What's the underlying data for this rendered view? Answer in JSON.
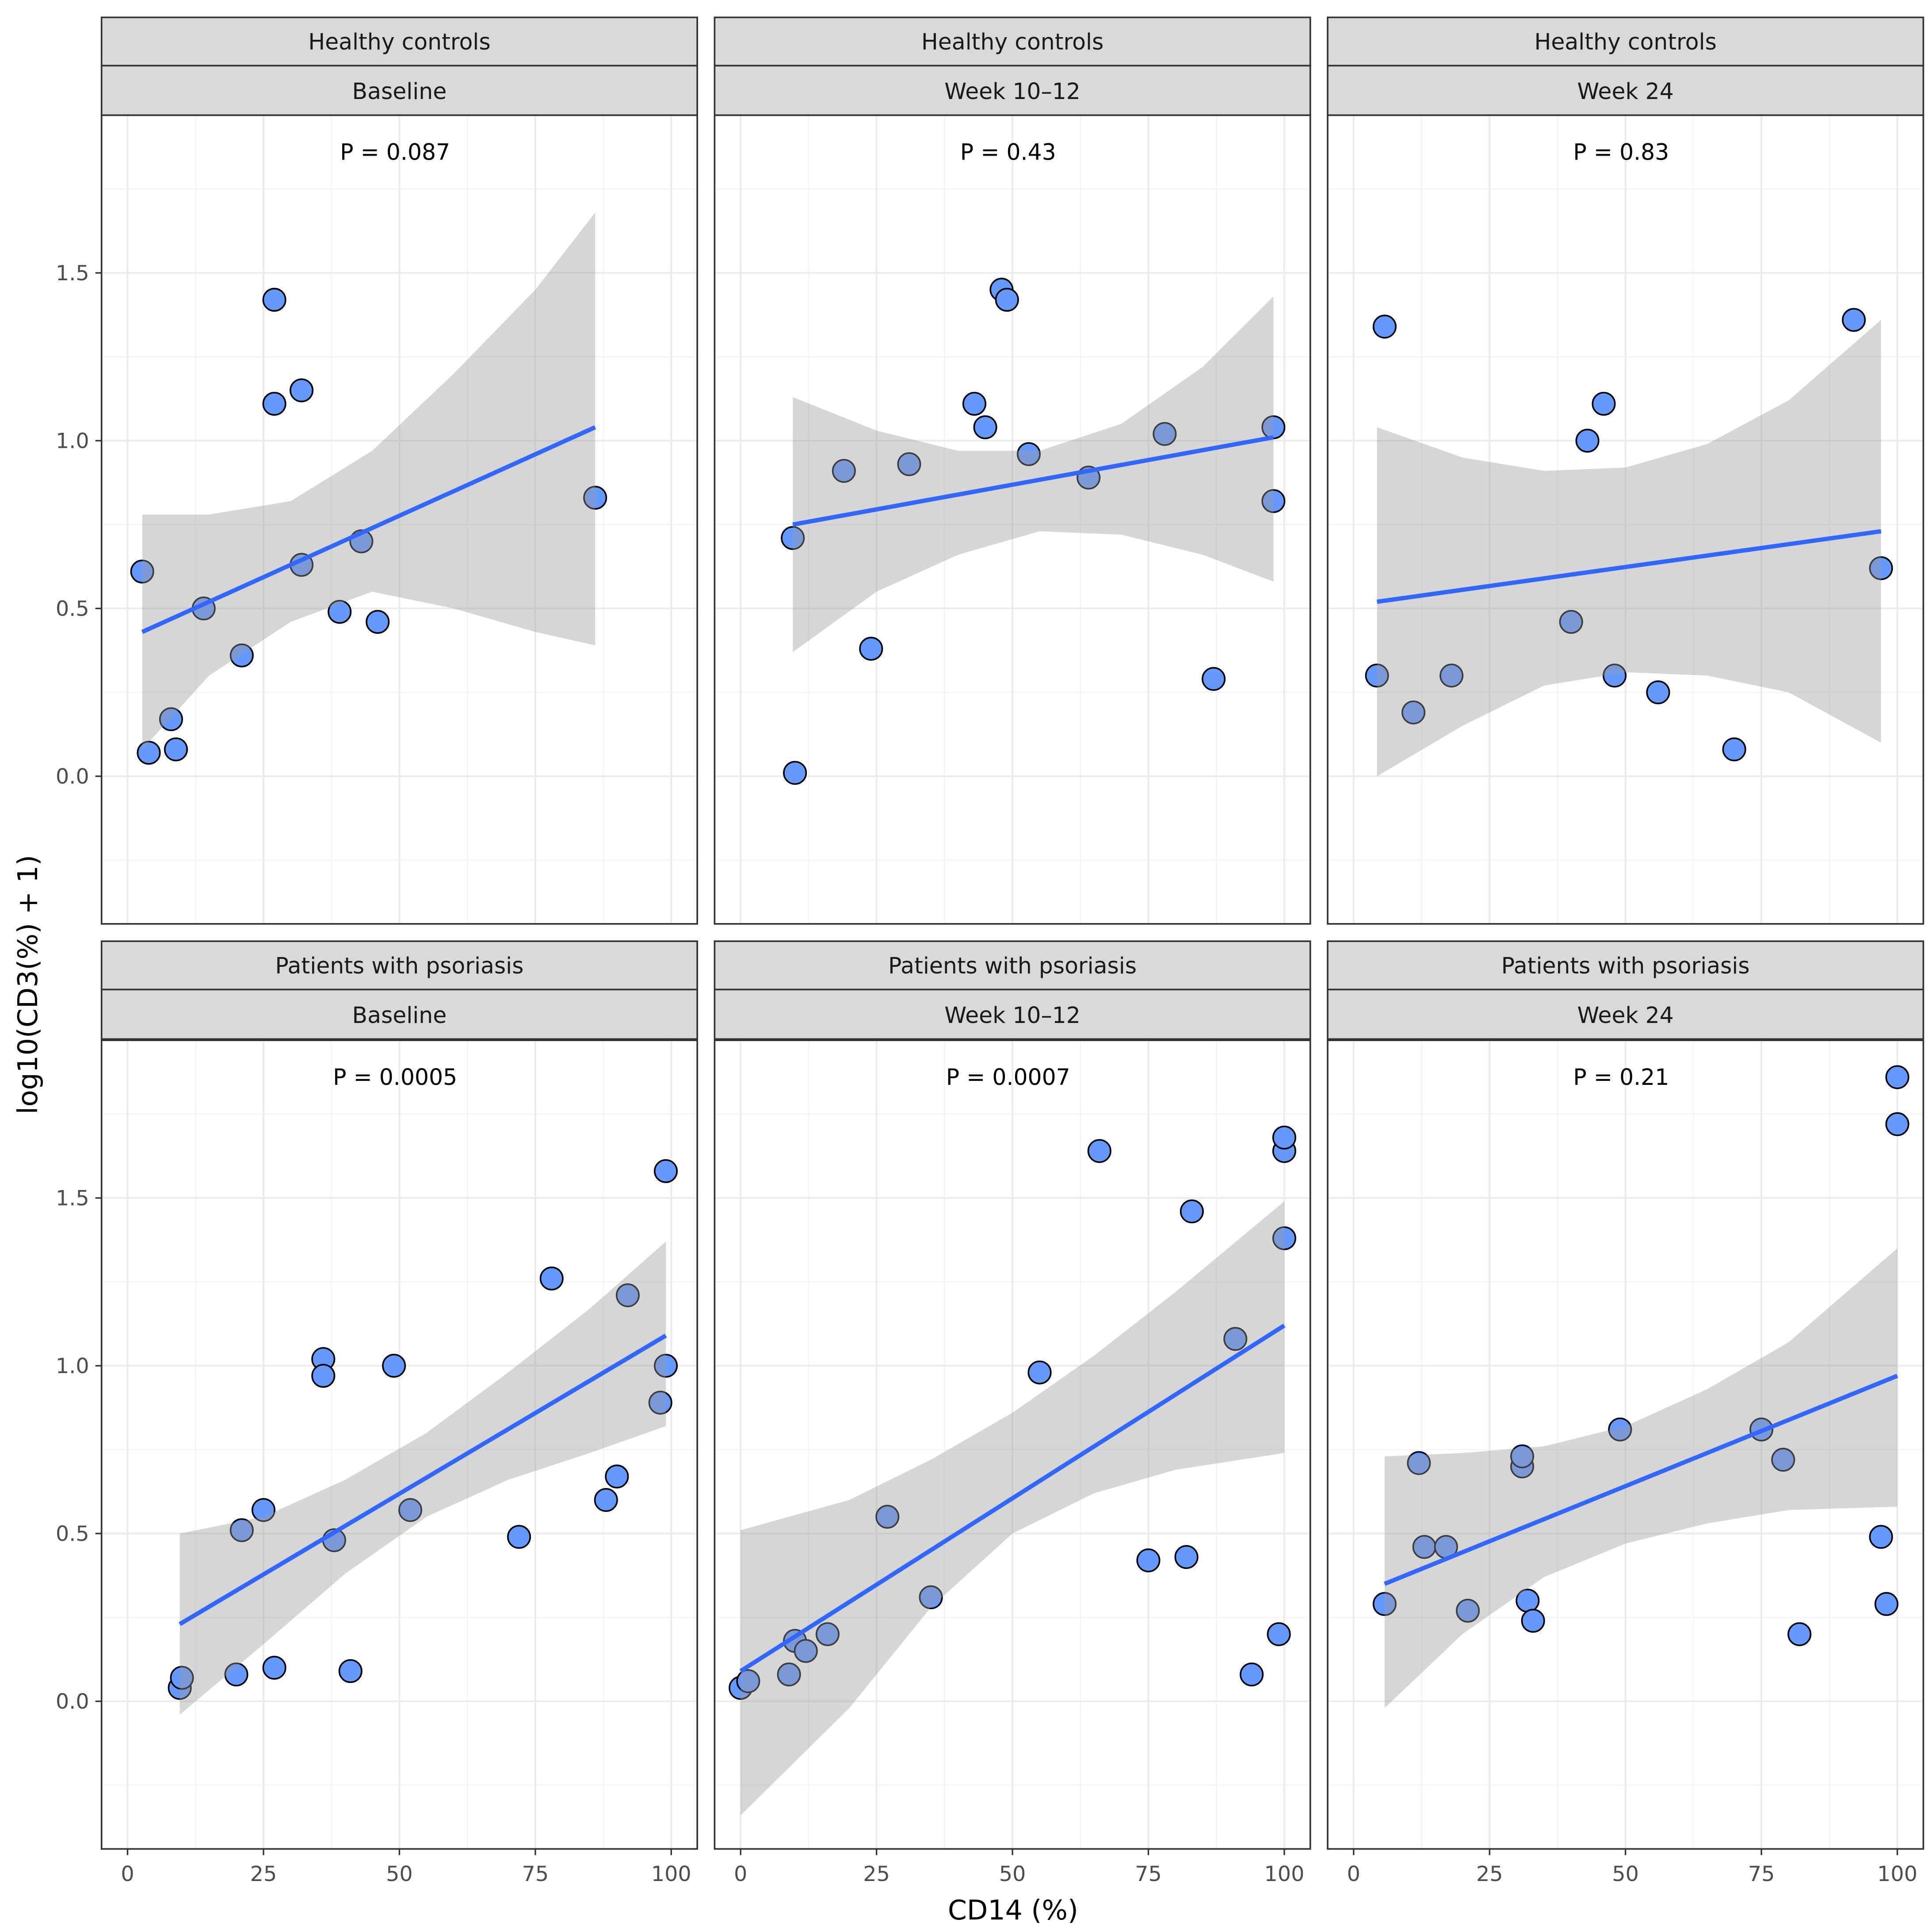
{
  "chart_data": {
    "type": "scatter",
    "xlabel": "CD14 (%)",
    "ylabel": "log10(CD3(%) + 1)",
    "xlim": [
      -5,
      105
    ],
    "ylim": [
      -0.44,
      1.97
    ],
    "xticks": [
      0,
      25,
      50,
      75,
      100
    ],
    "yticks": [
      0.0,
      0.5,
      1.0,
      1.5
    ],
    "xtick_labels": [
      "0",
      "25",
      "50",
      "75",
      "100"
    ],
    "ytick_labels": [
      "0.0",
      "0.5",
      "1.0",
      "1.5"
    ],
    "grid": true,
    "colors": {
      "point_fill": "#6699FF",
      "point_stroke": "#000000",
      "line": "#3366FF",
      "band": "#999999"
    },
    "panels": [
      {
        "group": "Healthy controls",
        "time": "Baseline",
        "p_label": "P = 0.087",
        "points": [
          [
            2.7,
            0.61
          ],
          [
            3.9,
            0.07
          ],
          [
            8.9,
            0.08
          ],
          [
            8,
            0.17
          ],
          [
            14,
            0.5
          ],
          [
            21,
            0.36
          ],
          [
            27,
            1.42
          ],
          [
            27,
            1.11
          ],
          [
            32,
            1.15
          ],
          [
            32,
            0.63
          ],
          [
            39,
            0.49
          ],
          [
            43,
            0.7
          ],
          [
            46,
            0.46
          ],
          [
            86,
            0.83
          ]
        ],
        "fit": [
          [
            2.7,
            0.43
          ],
          [
            86,
            1.04
          ]
        ],
        "band": {
          "x": [
            2.7,
            15,
            30,
            45,
            60,
            75,
            86
          ],
          "upper": [
            0.78,
            0.78,
            0.82,
            0.97,
            1.2,
            1.45,
            1.68
          ],
          "lower": [
            0.08,
            0.3,
            0.46,
            0.55,
            0.5,
            0.43,
            0.39
          ]
        }
      },
      {
        "group": "Healthy controls",
        "time": "Week 10–12",
        "p_label": "P = 0.43",
        "points": [
          [
            9.6,
            0.71
          ],
          [
            10,
            0.01
          ],
          [
            19,
            0.91
          ],
          [
            24,
            0.38
          ],
          [
            31,
            0.93
          ],
          [
            43,
            1.11
          ],
          [
            45,
            1.04
          ],
          [
            48,
            1.45
          ],
          [
            49,
            1.42
          ],
          [
            53,
            0.96
          ],
          [
            64,
            0.89
          ],
          [
            78,
            1.02
          ],
          [
            87,
            0.29
          ],
          [
            98,
            1.04
          ],
          [
            98,
            0.82
          ]
        ],
        "fit": [
          [
            9.6,
            0.75
          ],
          [
            98,
            1.01
          ]
        ],
        "band": {
          "x": [
            9.6,
            25,
            40,
            55,
            70,
            85,
            98
          ],
          "upper": [
            1.13,
            1.03,
            0.97,
            0.97,
            1.05,
            1.22,
            1.43
          ],
          "lower": [
            0.37,
            0.55,
            0.66,
            0.73,
            0.72,
            0.66,
            0.58
          ]
        }
      },
      {
        "group": "Healthy controls",
        "time": "Week 24",
        "p_label": "P = 0.83",
        "points": [
          [
            4.3,
            0.3
          ],
          [
            5.7,
            1.34
          ],
          [
            11,
            0.19
          ],
          [
            18,
            0.3
          ],
          [
            40,
            0.46
          ],
          [
            43,
            1.0
          ],
          [
            46,
            1.11
          ],
          [
            48,
            0.3
          ],
          [
            56,
            0.25
          ],
          [
            70,
            0.08
          ],
          [
            92,
            1.36
          ],
          [
            97,
            0.62
          ]
        ],
        "fit": [
          [
            4.3,
            0.52
          ],
          [
            97,
            0.73
          ]
        ],
        "band": {
          "x": [
            4.3,
            20,
            35,
            50,
            65,
            80,
            97
          ],
          "upper": [
            1.04,
            0.95,
            0.91,
            0.92,
            0.99,
            1.12,
            1.36
          ],
          "lower": [
            0.0,
            0.15,
            0.27,
            0.31,
            0.3,
            0.25,
            0.1
          ]
        }
      },
      {
        "group": "Patients with psoriasis",
        "time": "Baseline",
        "p_label": "P = 0.0005",
        "points": [
          [
            9.6,
            0.04
          ],
          [
            10,
            0.07
          ],
          [
            20,
            0.08
          ],
          [
            21,
            0.51
          ],
          [
            25,
            0.57
          ],
          [
            27,
            0.1
          ],
          [
            36,
            1.02
          ],
          [
            36,
            0.97
          ],
          [
            38,
            0.48
          ],
          [
            41,
            0.09
          ],
          [
            49,
            1.0
          ],
          [
            52,
            0.57
          ],
          [
            72,
            0.49
          ],
          [
            78,
            1.26
          ],
          [
            88,
            0.6
          ],
          [
            90,
            0.67
          ],
          [
            92,
            1.21
          ],
          [
            98,
            0.89
          ],
          [
            99,
            1.0
          ],
          [
            99,
            1.58
          ]
        ],
        "fit": [
          [
            9.6,
            0.23
          ],
          [
            99,
            1.09
          ]
        ],
        "band": {
          "x": [
            9.6,
            25,
            40,
            55,
            70,
            85,
            99
          ],
          "upper": [
            0.5,
            0.55,
            0.66,
            0.8,
            0.98,
            1.17,
            1.37
          ],
          "lower": [
            -0.04,
            0.17,
            0.38,
            0.55,
            0.66,
            0.74,
            0.82
          ]
        }
      },
      {
        "group": "Patients with psoriasis",
        "time": "Week 10–12",
        "p_label": "P = 0.0007",
        "points": [
          [
            0,
            0.04
          ],
          [
            1.4,
            0.06
          ],
          [
            8.9,
            0.08
          ],
          [
            10,
            0.18
          ],
          [
            12,
            0.15
          ],
          [
            16,
            0.2
          ],
          [
            27,
            0.55
          ],
          [
            35,
            0.31
          ],
          [
            55,
            0.98
          ],
          [
            66,
            1.64
          ],
          [
            75,
            0.42
          ],
          [
            82,
            0.43
          ],
          [
            83,
            1.46
          ],
          [
            91,
            1.08
          ],
          [
            94,
            0.08
          ],
          [
            99,
            0.2
          ],
          [
            100,
            1.38
          ],
          [
            100,
            1.64
          ],
          [
            100,
            1.68
          ]
        ],
        "fit": [
          [
            0,
            0.09
          ],
          [
            100,
            1.12
          ]
        ],
        "band": {
          "x": [
            0,
            20,
            35,
            50,
            65,
            80,
            100
          ],
          "upper": [
            0.51,
            0.6,
            0.72,
            0.86,
            1.03,
            1.22,
            1.49
          ],
          "lower": [
            -0.34,
            -0.02,
            0.28,
            0.5,
            0.62,
            0.69,
            0.74
          ]
        }
      },
      {
        "group": "Patients with psoriasis",
        "time": "Week 24",
        "p_label": "P = 0.21",
        "points": [
          [
            5.7,
            0.29
          ],
          [
            12,
            0.71
          ],
          [
            13,
            0.46
          ],
          [
            17,
            0.46
          ],
          [
            21,
            0.27
          ],
          [
            31,
            0.7
          ],
          [
            31,
            0.73
          ],
          [
            32,
            0.3
          ],
          [
            33,
            0.24
          ],
          [
            49,
            0.81
          ],
          [
            75,
            0.81
          ],
          [
            79,
            0.72
          ],
          [
            82,
            0.2
          ],
          [
            97,
            0.49
          ],
          [
            98,
            0.29
          ],
          [
            100,
            1.72
          ],
          [
            100,
            1.86
          ]
        ],
        "fit": [
          [
            5.7,
            0.35
          ],
          [
            100,
            0.97
          ]
        ],
        "band": {
          "x": [
            5.7,
            20,
            35,
            50,
            65,
            80,
            100
          ],
          "upper": [
            0.73,
            0.74,
            0.76,
            0.82,
            0.93,
            1.07,
            1.35
          ],
          "lower": [
            -0.02,
            0.2,
            0.37,
            0.47,
            0.53,
            0.57,
            0.58
          ]
        }
      }
    ]
  }
}
